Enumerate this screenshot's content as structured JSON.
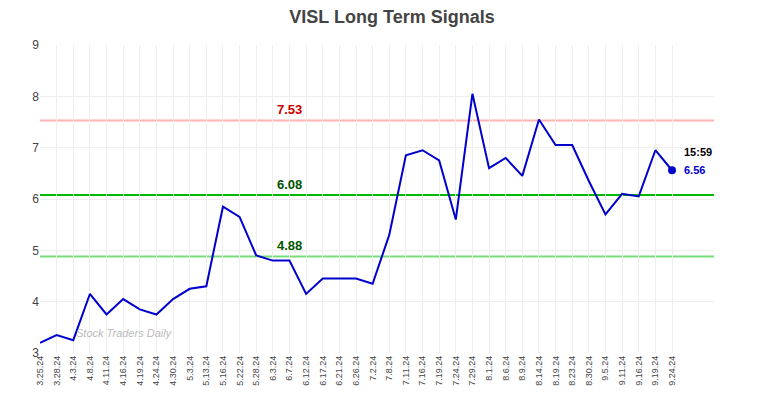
{
  "chart_data": {
    "type": "line",
    "title": "VISL Long Term Signals",
    "categories": [
      "3.25.24",
      "3.28.24",
      "4.3.24",
      "4.8.24",
      "4.11.24",
      "4.16.24",
      "4.19.24",
      "4.24.24",
      "4.30.24",
      "5.3.24",
      "5.13.24",
      "5.16.24",
      "5.22.24",
      "5.28.24",
      "6.3.24",
      "6.7.24",
      "6.12.24",
      "6.17.24",
      "6.21.24",
      "6.26.24",
      "7.2.24",
      "7.8.24",
      "7.11.24",
      "7.16.24",
      "7.19.24",
      "7.24.24",
      "7.29.24",
      "8.1.24",
      "8.6.24",
      "8.9.24",
      "8.14.24",
      "8.19.24",
      "8.23.24",
      "8.30.24",
      "9.5.24",
      "9.11.24",
      "9.16.24",
      "9.19.24",
      "9.24.24"
    ],
    "values": [
      3.2,
      3.35,
      3.25,
      4.15,
      3.75,
      4.05,
      3.85,
      3.75,
      4.05,
      4.25,
      4.3,
      5.85,
      5.65,
      4.9,
      4.8,
      4.8,
      4.15,
      4.45,
      4.45,
      4.45,
      4.35,
      5.3,
      6.85,
      6.95,
      6.75,
      5.6,
      8.05,
      6.6,
      6.8,
      6.45,
      7.55,
      7.05,
      7.05,
      6.35,
      5.7,
      6.1,
      6.05,
      6.95,
      6.56
    ],
    "color": "#0000cc",
    "ylim": [
      3,
      9
    ],
    "yticks": [
      3,
      4,
      5,
      6,
      7,
      8,
      9
    ],
    "grid": true,
    "hlines": [
      {
        "value": 7.53,
        "label": "7.53",
        "color": "#ffb3b3",
        "label_color": "#cc0000"
      },
      {
        "value": 6.08,
        "label": "6.08",
        "color": "#00bb00",
        "label_color": "#005500"
      },
      {
        "value": 4.88,
        "label": "4.88",
        "color": "#77dd77",
        "label_color": "#005500"
      }
    ],
    "last_point": {
      "marker": "circle",
      "color": "#0000cc",
      "time_label": "15:59",
      "value_label": "6.56"
    },
    "watermark": "Stock Traders Daily"
  }
}
